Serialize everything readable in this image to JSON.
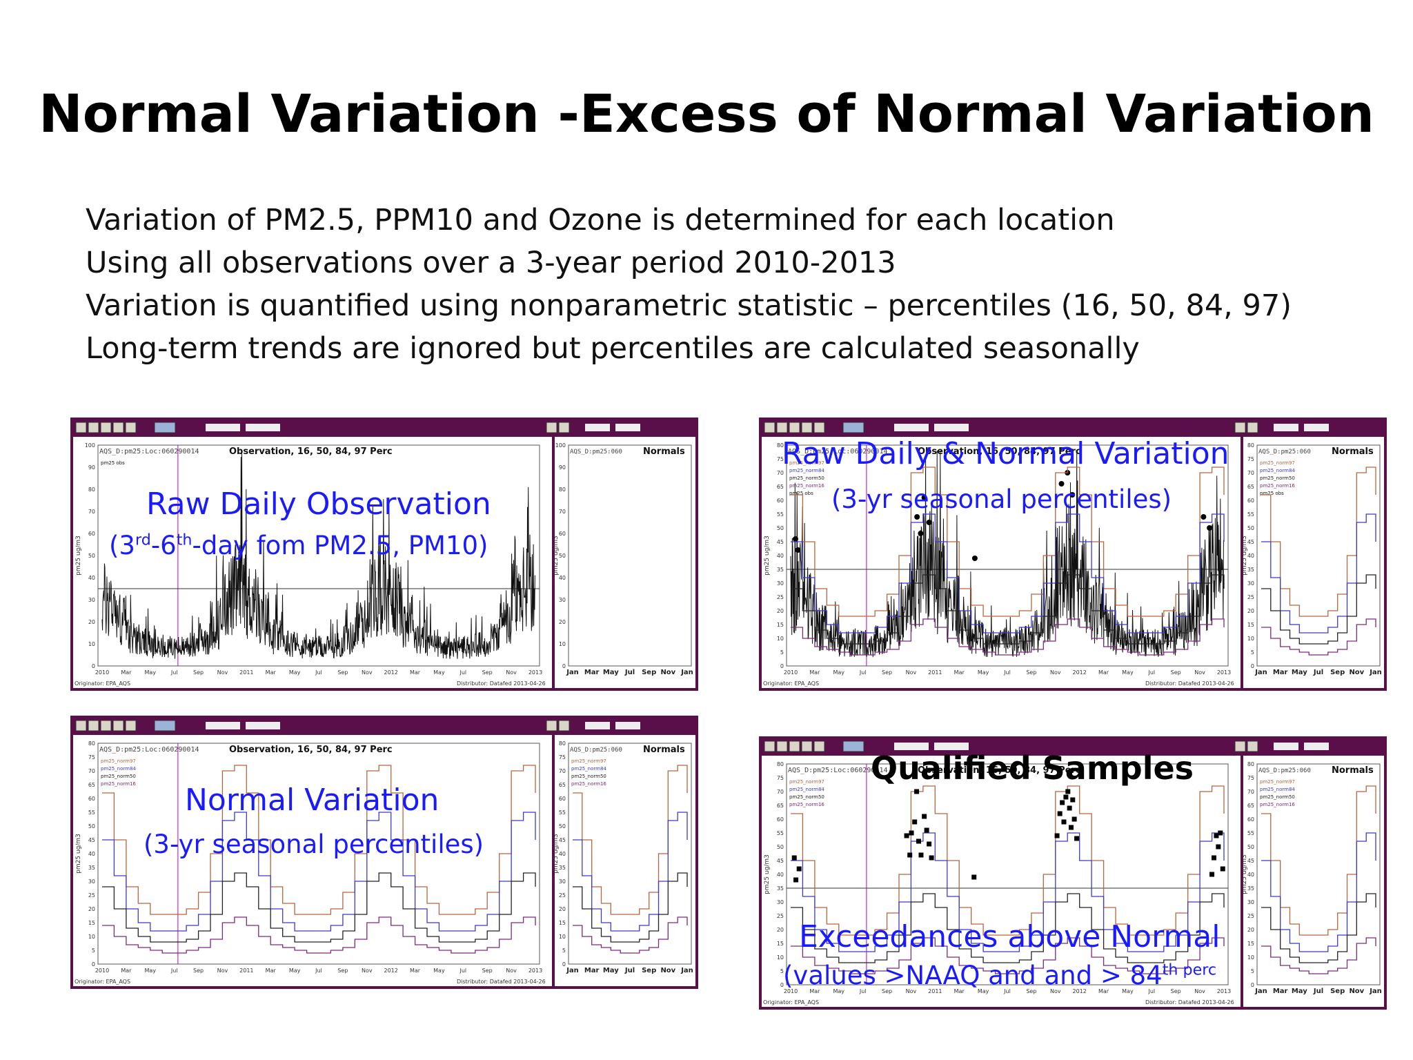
{
  "slide": {
    "title": "Normal Variation -Excess of Normal Variation",
    "bullets": [
      "Variation of PM2.5, PPM10 and Ozone is determined for each location",
      "Using all observations over a 3-year period 2010-2013",
      "Variation is quantified using nonparametric statistic – percentiles (16, 50, 84, 97)",
      "Long-term trends are ignored but percentiles are calculated seasonally"
    ]
  },
  "colors": {
    "frame": "#5a0f4a",
    "overlay_text": "#1a1aff",
    "p97": "#b5663c",
    "p84": "#3a3acc",
    "p50": "#222222",
    "p16": "#7a2a7a",
    "vline": "#c000c0"
  },
  "panels": [
    {
      "id": "raw",
      "main_header": "AQS_D:pm25:Loc:060290014",
      "main_title": "Observation, 16, 50, 84, 97 Perc",
      "side_header": "AQS_D:pm25:060",
      "side_title": "Normals",
      "ylabel": "pm25 ug/m3",
      "legend": [
        "pm25 obs"
      ],
      "footer_left": "Originator: EPA_AQS",
      "footer_right": "Distributor: Datafed 2013-04-26",
      "overlay_title": "Raw Daily Observation",
      "overlay_sub_a": "(3",
      "overlay_sup_a": "rd",
      "overlay_sub_b": "-6",
      "overlay_sup_b": "th",
      "overlay_sub_c": "-day fom  PM2.5, PM10)"
    },
    {
      "id": "rawnormal",
      "main_header": "AQS_D:pm25:Loc:060290014",
      "main_title": "Observation, 16, 50, 84, 97 Perc",
      "side_header": "AQS_D:pm25:060",
      "side_title": "Normals",
      "ylabel": "pm25 ug/m3",
      "legend": [
        "pm25_norm97",
        "pm25_norm84",
        "pm25_norm50",
        "pm25_norm16",
        "pm25 obs"
      ],
      "footer_left": "Originator: EPA_AQS",
      "footer_right": "Distributor: Datafed 2013-04-26",
      "overlay_title": "Raw Daily & Normal Variation",
      "overlay_sub": "(3-yr seasonal percentiles)"
    },
    {
      "id": "normal",
      "main_header": "AQS_D:pm25:Loc:060290014",
      "main_title": "Observation, 16, 50, 84, 97 Perc",
      "side_header": "AQS_D:pm25:060",
      "side_title": "Normals",
      "ylabel": "pm25 ug/m3",
      "legend": [
        "pm25_norm97",
        "pm25_norm84",
        "pm25_norm50",
        "pm25_norm16"
      ],
      "footer_left": "Originator: EPA_AQS",
      "footer_right": "Distributor: Datafed 2013-04-26",
      "overlay_title": "Normal Variation",
      "overlay_sub": "(3-yr seasonal percentiles)"
    },
    {
      "id": "qualified",
      "main_header": "AQS_D:pm25:Loc:060290014",
      "main_title": "Observation, 16, 50, 84, 97 Perc",
      "side_header": "AQS_D:pm25:060",
      "side_title": "Normals",
      "ylabel": "pm25 ug/m3",
      "legend": [
        "pm25_norm97",
        "pm25_norm84",
        "pm25_norm50",
        "pm25_norm16"
      ],
      "footer_left": "Originator: EPA_AQS",
      "footer_right": "Distributor: Datafed 2013-04-26",
      "overlay_heading": "Qualified Samples",
      "overlay_title": "Exceedances above Normal",
      "overlay_sub_a": "(values >NAAQ and and > 84",
      "overlay_sup": "th perc"
    }
  ],
  "chart_data": [
    {
      "type": "line",
      "panel": "raw",
      "x_ticks": [
        "2010",
        "Mar",
        "May",
        "Jul",
        "Sep",
        "Nov",
        "2011",
        "Mar",
        "May",
        "Jul",
        "Sep",
        "Nov",
        "2012",
        "Mar",
        "May",
        "Jul",
        "Sep",
        "Nov",
        "2013"
      ],
      "side_x_ticks": [
        "Jan",
        "Mar",
        "May",
        "Jul",
        "Sep",
        "Nov",
        "Jan"
      ],
      "ylim": [
        0,
        100
      ],
      "y_ticks": [
        0,
        10,
        20,
        30,
        40,
        50,
        60,
        70,
        80,
        90,
        100
      ],
      "naaqs_line": 35,
      "series": [
        {
          "name": "pm25 obs",
          "kind": "obs"
        }
      ]
    },
    {
      "type": "line",
      "panel": "rawnormal",
      "x_ticks": [
        "2010",
        "Mar",
        "May",
        "Jul",
        "Sep",
        "Nov",
        "2011",
        "Mar",
        "May",
        "Jul",
        "Sep",
        "Nov",
        "2012",
        "Mar",
        "May",
        "Jul",
        "Sep",
        "Nov",
        "2013"
      ],
      "side_x_ticks": [
        "Jan",
        "Mar",
        "May",
        "Jul",
        "Sep",
        "Nov",
        "Jan"
      ],
      "ylim": [
        0,
        80
      ],
      "y_ticks": [
        0,
        5,
        10,
        15,
        20,
        25,
        30,
        35,
        40,
        45,
        50,
        55,
        60,
        65,
        70,
        75,
        80
      ],
      "naaqs_line": 35,
      "seasonal_normals": {
        "months": [
          1,
          2,
          3,
          4,
          5,
          6,
          7,
          8,
          9,
          10,
          11,
          12
        ],
        "p97": [
          62,
          45,
          28,
          22,
          18,
          18,
          18,
          20,
          26,
          40,
          70,
          72
        ],
        "p84": [
          45,
          32,
          20,
          15,
          12,
          12,
          12,
          14,
          18,
          30,
          52,
          55
        ],
        "p50": [
          28,
          20,
          13,
          10,
          8,
          8,
          8,
          9,
          12,
          18,
          30,
          33
        ],
        "p16": [
          14,
          10,
          7,
          6,
          5,
          4,
          4,
          5,
          6,
          9,
          15,
          17
        ]
      },
      "series": [
        {
          "name": "pm25 obs",
          "kind": "obs"
        },
        {
          "name": "pm25_norm97"
        },
        {
          "name": "pm25_norm84"
        },
        {
          "name": "pm25_norm50"
        },
        {
          "name": "pm25_norm16"
        }
      ]
    },
    {
      "type": "line",
      "panel": "normal",
      "x_ticks": [
        "2010",
        "Mar",
        "May",
        "Jul",
        "Sep",
        "Nov",
        "2011",
        "Mar",
        "May",
        "Jul",
        "Sep",
        "Nov",
        "2012",
        "Mar",
        "May",
        "Jul",
        "Sep",
        "Nov",
        "2013"
      ],
      "side_x_ticks": [
        "Jan",
        "Mar",
        "May",
        "Jul",
        "Sep",
        "Nov",
        "Jan"
      ],
      "ylim": [
        0,
        80
      ],
      "y_ticks": [
        0,
        5,
        10,
        15,
        20,
        25,
        30,
        35,
        40,
        45,
        50,
        55,
        60,
        65,
        70,
        75,
        80
      ],
      "seasonal_normals": {
        "months": [
          1,
          2,
          3,
          4,
          5,
          6,
          7,
          8,
          9,
          10,
          11,
          12
        ],
        "p97": [
          62,
          45,
          28,
          22,
          18,
          18,
          18,
          20,
          26,
          40,
          70,
          72
        ],
        "p84": [
          45,
          32,
          20,
          15,
          12,
          12,
          12,
          14,
          18,
          30,
          52,
          55
        ],
        "p50": [
          28,
          20,
          13,
          10,
          8,
          8,
          8,
          9,
          12,
          18,
          30,
          33
        ],
        "p16": [
          14,
          10,
          7,
          6,
          5,
          4,
          4,
          5,
          6,
          9,
          15,
          17
        ]
      },
      "series": [
        {
          "name": "pm25_norm97"
        },
        {
          "name": "pm25_norm84"
        },
        {
          "name": "pm25_norm50"
        },
        {
          "name": "pm25_norm16"
        }
      ]
    },
    {
      "type": "scatter",
      "panel": "qualified",
      "x_ticks": [
        "2010",
        "Mar",
        "May",
        "Jul",
        "Sep",
        "Nov",
        "2011",
        "Mar",
        "May",
        "Jul",
        "Sep",
        "Nov",
        "2012",
        "Mar",
        "May",
        "Jul",
        "Sep",
        "Nov",
        "2013"
      ],
      "side_x_ticks": [
        "Jan",
        "Mar",
        "May",
        "Jul",
        "Sep",
        "Nov",
        "Jan"
      ],
      "ylim": [
        0,
        80
      ],
      "y_ticks": [
        0,
        5,
        10,
        15,
        20,
        25,
        30,
        35,
        40,
        45,
        50,
        55,
        60,
        65,
        70,
        75,
        80
      ],
      "naaqs_line": 35,
      "qualified_points": [
        {
          "x": "2010-01-10",
          "y": 46
        },
        {
          "x": "2010-01-14",
          "y": 38
        },
        {
          "x": "2010-01-22",
          "y": 42
        },
        {
          "x": "2010-10-20",
          "y": 54
        },
        {
          "x": "2010-10-28",
          "y": 47
        },
        {
          "x": "2010-11-02",
          "y": 55
        },
        {
          "x": "2010-11-10",
          "y": 59
        },
        {
          "x": "2010-11-15",
          "y": 70
        },
        {
          "x": "2010-11-20",
          "y": 52
        },
        {
          "x": "2010-11-26",
          "y": 47
        },
        {
          "x": "2010-12-04",
          "y": 61
        },
        {
          "x": "2010-12-10",
          "y": 56
        },
        {
          "x": "2010-12-16",
          "y": 51
        },
        {
          "x": "2010-12-22",
          "y": 46
        },
        {
          "x": "2011-04-08",
          "y": 39
        },
        {
          "x": "2011-11-05",
          "y": 54
        },
        {
          "x": "2011-11-12",
          "y": 62
        },
        {
          "x": "2011-11-18",
          "y": 66
        },
        {
          "x": "2011-11-22",
          "y": 59
        },
        {
          "x": "2011-11-27",
          "y": 68
        },
        {
          "x": "2011-12-02",
          "y": 70
        },
        {
          "x": "2011-12-06",
          "y": 64
        },
        {
          "x": "2011-12-10",
          "y": 57
        },
        {
          "x": "2011-12-14",
          "y": 67
        },
        {
          "x": "2011-12-18",
          "y": 60
        },
        {
          "x": "2011-12-24",
          "y": 53
        },
        {
          "x": "2012-12-01",
          "y": 40
        },
        {
          "x": "2012-12-06",
          "y": 46
        },
        {
          "x": "2012-12-12",
          "y": 54
        },
        {
          "x": "2012-12-17",
          "y": 50
        },
        {
          "x": "2012-12-22",
          "y": 55
        },
        {
          "x": "2012-12-28",
          "y": 42
        }
      ],
      "seasonal_normals": {
        "months": [
          1,
          2,
          3,
          4,
          5,
          6,
          7,
          8,
          9,
          10,
          11,
          12
        ],
        "p97": [
          62,
          45,
          28,
          22,
          18,
          18,
          18,
          20,
          26,
          40,
          70,
          72
        ],
        "p84": [
          45,
          32,
          20,
          15,
          12,
          12,
          12,
          14,
          18,
          30,
          52,
          55
        ],
        "p50": [
          28,
          20,
          13,
          10,
          8,
          8,
          8,
          9,
          12,
          18,
          30,
          33
        ],
        "p16": [
          14,
          10,
          7,
          6,
          5,
          4,
          4,
          5,
          6,
          9,
          15,
          17
        ]
      },
      "series": [
        {
          "name": "pm25_norm97"
        },
        {
          "name": "pm25_norm84"
        },
        {
          "name": "pm25_norm50"
        },
        {
          "name": "pm25_norm16"
        }
      ]
    }
  ]
}
